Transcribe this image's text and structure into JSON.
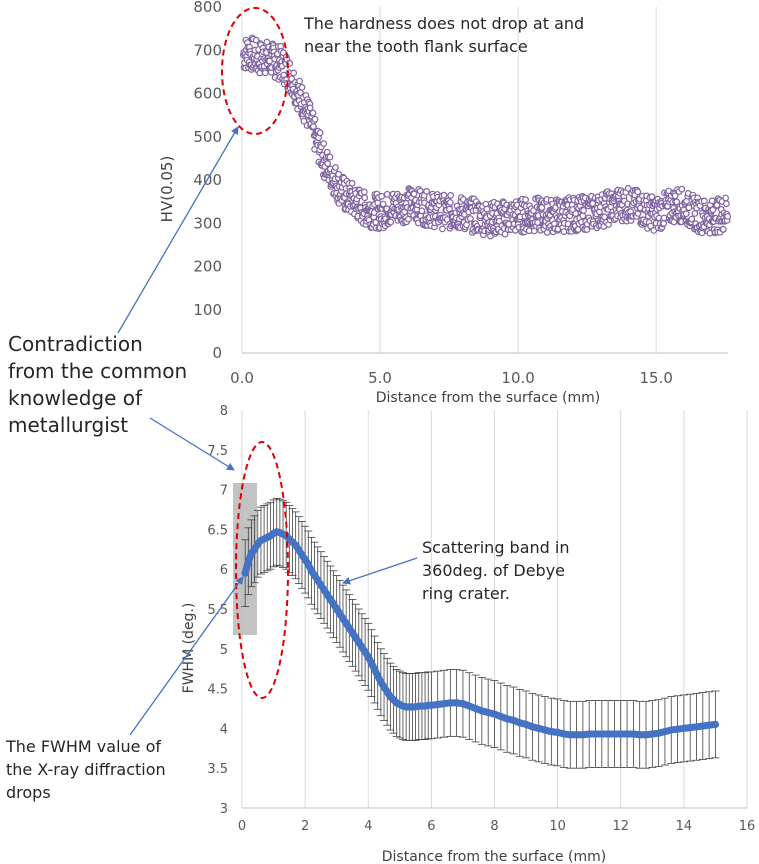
{
  "chart_data": [
    {
      "type": "scatter",
      "xlabel": "Distance from the surface (mm)",
      "ylabel": "HV(0.05)",
      "xlim": [
        0,
        17.6
      ],
      "ylim": [
        0,
        800
      ],
      "x_ticks": [
        "0.0",
        "5.0",
        "10.0",
        "15.0"
      ],
      "y_ticks": [
        "0",
        "100",
        "200",
        "300",
        "400",
        "500",
        "600",
        "700",
        "800"
      ],
      "grid": "vertical",
      "marker_color": "#8064a2",
      "series": [
        {
          "x": [
            0.05,
            0.2,
            0.4,
            0.6,
            0.8,
            1.0,
            1.2,
            1.4,
            1.6,
            1.8,
            2.0,
            2.2,
            2.4,
            2.6,
            2.8,
            3.0,
            3.2,
            3.4,
            3.6,
            3.8,
            4.0,
            4.2,
            4.4,
            4.6,
            4.8,
            5.0,
            5.4,
            5.8,
            6.2,
            6.6,
            7.0,
            7.4,
            7.8,
            8.2,
            8.6,
            9.0,
            9.4,
            9.8,
            10.2,
            10.6,
            11.0,
            11.4,
            11.8,
            12.2,
            12.6,
            13.0,
            13.4,
            13.8,
            14.2,
            14.6,
            15.0,
            15.4,
            15.8,
            16.2,
            16.6,
            17.0,
            17.4,
            17.6
          ],
          "y": [
            690,
            695,
            690,
            680,
            685,
            680,
            675,
            670,
            655,
            635,
            605,
            580,
            550,
            510,
            475,
            440,
            420,
            395,
            375,
            360,
            355,
            345,
            335,
            330,
            330,
            325,
            335,
            340,
            345,
            335,
            330,
            325,
            325,
            320,
            315,
            310,
            312,
            315,
            318,
            320,
            318,
            318,
            320,
            322,
            325,
            330,
            338,
            345,
            340,
            330,
            320,
            335,
            345,
            330,
            318,
            315,
            320,
            330
          ]
        }
      ],
      "annotations": [
        "The hardness does not drop at and",
        "near the tooth flank surface"
      ]
    },
    {
      "type": "line",
      "xlabel": "Distance from the surface (mm)",
      "ylabel": "FWHM (deg.)",
      "xlim": [
        0,
        16
      ],
      "ylim": [
        3,
        8
      ],
      "x_ticks": [
        "0",
        "2",
        "4",
        "6",
        "8",
        "10",
        "12",
        "14",
        "16"
      ],
      "y_ticks": [
        "3",
        "3.5",
        "4",
        "4.5",
        "5",
        "5.5",
        "6",
        "6.5",
        "7",
        "7.5",
        "8"
      ],
      "grid": "vertical",
      "line_color": "#4472c4",
      "series": [
        {
          "x": [
            0.1,
            0.2,
            0.3,
            0.4,
            0.5,
            0.6,
            0.7,
            0.8,
            0.9,
            1.0,
            1.1,
            1.2,
            1.3,
            1.4,
            1.5,
            1.6,
            1.7,
            1.8,
            1.9,
            2.0,
            2.1,
            2.2,
            2.3,
            2.4,
            2.5,
            2.6,
            2.7,
            2.8,
            2.9,
            3.0,
            3.1,
            3.2,
            3.3,
            3.4,
            3.5,
            3.6,
            3.7,
            3.8,
            3.9,
            4.0,
            4.1,
            4.2,
            4.3,
            4.4,
            4.5,
            4.6,
            4.7,
            4.8,
            4.9,
            5.0,
            5.1,
            5.2,
            5.3,
            5.4,
            5.5,
            5.6,
            5.7,
            5.8,
            5.9,
            6.0,
            6.2,
            6.4,
            6.6,
            6.8,
            7.0,
            7.2,
            7.4,
            7.6,
            7.8,
            8.0,
            8.2,
            8.4,
            8.6,
            8.8,
            9.0,
            9.2,
            9.4,
            9.6,
            9.8,
            10.0,
            10.2,
            10.4,
            10.6,
            10.8,
            11.0,
            11.2,
            11.4,
            11.6,
            11.8,
            12.0,
            12.2,
            12.4,
            12.6,
            12.8,
            13.0,
            13.2,
            13.4,
            13.6,
            13.8,
            14.0,
            14.2,
            14.4,
            14.6,
            14.8,
            15.0
          ],
          "y": [
            5.95,
            6.1,
            6.2,
            6.25,
            6.32,
            6.36,
            6.38,
            6.4,
            6.42,
            6.45,
            6.47,
            6.46,
            6.44,
            6.42,
            6.38,
            6.34,
            6.3,
            6.24,
            6.18,
            6.12,
            6.06,
            5.98,
            5.92,
            5.86,
            5.8,
            5.74,
            5.68,
            5.62,
            5.56,
            5.5,
            5.44,
            5.38,
            5.32,
            5.26,
            5.2,
            5.14,
            5.08,
            5.02,
            4.96,
            4.9,
            4.82,
            4.74,
            4.66,
            4.58,
            4.52,
            4.46,
            4.4,
            4.36,
            4.32,
            4.3,
            4.28,
            4.27,
            4.27,
            4.27,
            4.27,
            4.28,
            4.28,
            4.28,
            4.29,
            4.29,
            4.3,
            4.31,
            4.32,
            4.32,
            4.31,
            4.28,
            4.25,
            4.22,
            4.2,
            4.18,
            4.15,
            4.12,
            4.1,
            4.07,
            4.05,
            4.02,
            4.0,
            3.98,
            3.96,
            3.95,
            3.93,
            3.92,
            3.92,
            3.92,
            3.93,
            3.93,
            3.93,
            3.93,
            3.93,
            3.93,
            3.93,
            3.93,
            3.92,
            3.92,
            3.93,
            3.94,
            3.96,
            3.98,
            3.99,
            4.0,
            4.01,
            4.02,
            4.03,
            4.04,
            4.05
          ],
          "error": 0.42
        }
      ],
      "annotations": [
        "Scattering band in",
        "360deg. of Debye",
        "ring crater."
      ]
    }
  ],
  "callouts": {
    "contradiction": [
      "Contradiction",
      "from the common",
      "knowledge of",
      "metallurgist"
    ],
    "fwhm_drops": [
      "The FWHM value of",
      "the X-ray diffraction",
      "drops"
    ]
  }
}
